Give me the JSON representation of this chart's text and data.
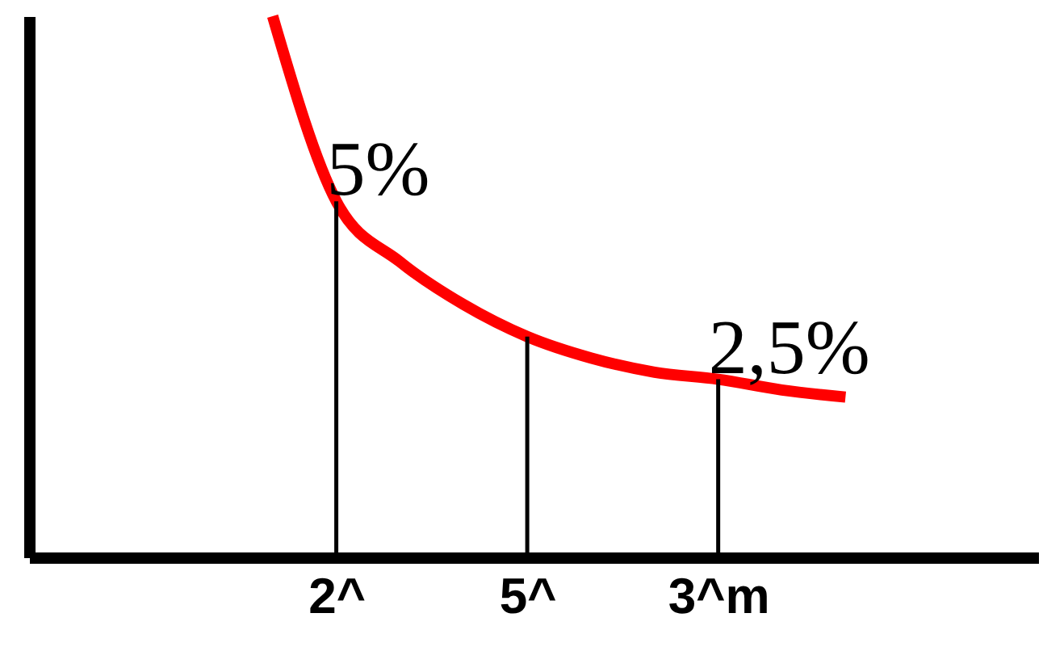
{
  "chart_data": {
    "type": "line",
    "categories": [
      null,
      "2^",
      null,
      null,
      "5^",
      null,
      null,
      "3^m",
      null,
      null
    ],
    "tick_labels": "x",
    "marker": "none",
    "line_style": "solid",
    "series": [
      {
        "color": "#ff0000",
        "values": [
          7.6,
          5,
          4.15,
          3.55,
          3.1,
          2.8,
          2.6,
          2.5,
          2.35,
          2.25
        ],
        "value_labels": [
          null,
          "5%",
          null,
          null,
          null,
          null,
          null,
          "2,5%",
          null,
          null
        ]
      },
      {
        "type": "bar",
        "color": "#000000",
        "values": [
          null,
          5,
          null,
          null,
          3.1,
          null,
          null,
          2.5,
          null,
          null
        ]
      }
    ]
  }
}
